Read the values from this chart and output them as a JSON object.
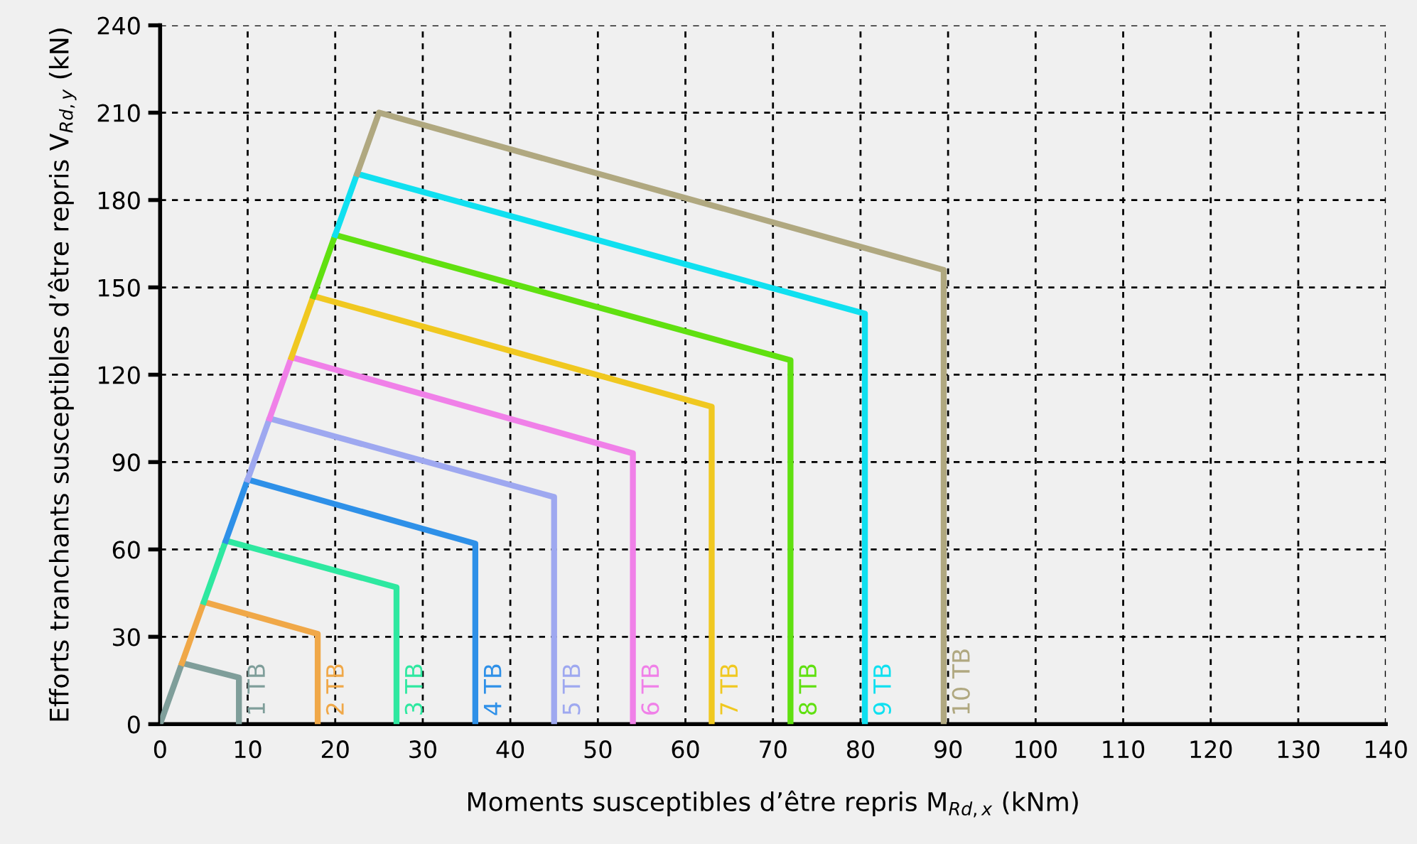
{
  "chart_data": {
    "type": "line",
    "xlabel": "Moments susceptibles d’être repris M$_{Rd,x}$ (kNm)",
    "ylabel": "Efforts tranchants susceptibles d’être repris V$_{Rd,y}$ (kN)",
    "xlim": [
      0,
      140
    ],
    "xticks": [
      0,
      10,
      20,
      30,
      40,
      50,
      60,
      70,
      80,
      90,
      100,
      110,
      120,
      130,
      140
    ],
    "ylim": [
      0,
      240
    ],
    "yticks": [
      0,
      30,
      60,
      90,
      120,
      150,
      180,
      210,
      240
    ],
    "grid": true,
    "legend": false,
    "line_style": "solid",
    "marker": "none",
    "series": [
      {
        "name": "1 TB",
        "color": "#7f9e9a",
        "x": [
          0,
          2.5,
          9,
          9
        ],
        "values": [
          0,
          21,
          16,
          0
        ]
      },
      {
        "name": "2 TB",
        "color": "#f0a848",
        "x": [
          2.5,
          5,
          18,
          18
        ],
        "values": [
          21,
          42,
          31,
          0
        ]
      },
      {
        "name": "3 TB",
        "color": "#2ee8a0",
        "x": [
          5,
          7.5,
          27,
          27
        ],
        "values": [
          42,
          63,
          47,
          0
        ]
      },
      {
        "name": "4 TB",
        "color": "#2e90e8",
        "x": [
          7.5,
          10,
          36,
          36
        ],
        "values": [
          63,
          84,
          62,
          0
        ]
      },
      {
        "name": "5 TB",
        "color": "#9ea8f0",
        "x": [
          10,
          12.5,
          45,
          45
        ],
        "values": [
          84,
          105,
          78,
          0
        ]
      },
      {
        "name": "6 TB",
        "color": "#f080e8",
        "x": [
          12.5,
          15,
          54,
          54
        ],
        "values": [
          105,
          126,
          93,
          0
        ]
      },
      {
        "name": "7 TB",
        "color": "#f0c820",
        "x": [
          15,
          17.5,
          63,
          63
        ],
        "values": [
          126,
          147,
          109,
          0
        ]
      },
      {
        "name": "8 TB",
        "color": "#60e010",
        "x": [
          17.5,
          20,
          72,
          72
        ],
        "values": [
          147,
          168,
          125,
          0
        ]
      },
      {
        "name": "9 TB",
        "color": "#10e0f0",
        "x": [
          20,
          22.5,
          80.5,
          80.5
        ],
        "values": [
          168,
          189,
          141,
          0
        ]
      },
      {
        "name": "10 TB",
        "color": "#b0a880",
        "x": [
          22.5,
          25,
          89.5,
          89.5
        ],
        "values": [
          189,
          210,
          156,
          0
        ]
      }
    ]
  }
}
